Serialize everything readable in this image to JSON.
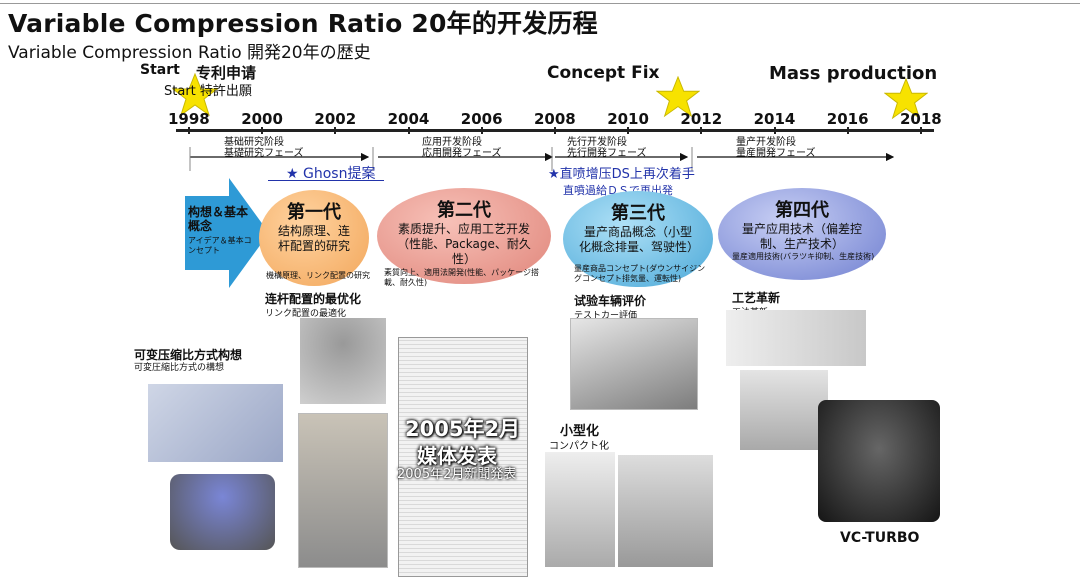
{
  "header": {
    "title": "Variable Compression Ratio 20年的开发历程",
    "subtitle": "Variable Compression Ratio 開発20年の歴史"
  },
  "milestones": {
    "start_label": "Start",
    "start_zh": "专利申请",
    "start_jp": "Start 特許出願",
    "concept_fix": "Concept Fix",
    "mass_production": "Mass production"
  },
  "timeline": {
    "years": [
      "1998",
      "2000",
      "2002",
      "2004",
      "2006",
      "2008",
      "2010",
      "2012",
      "2014",
      "2016",
      "2018"
    ]
  },
  "phases": [
    {
      "zh": "基础研究阶段",
      "jp": "基礎研究フェーズ"
    },
    {
      "zh": "应用开发阶段",
      "jp": "応用開発フェーズ"
    },
    {
      "zh": "先行开发阶段",
      "jp": "先行開発フェーズ"
    },
    {
      "zh": "量产开发阶段",
      "jp": "量産開発フェーズ"
    }
  ],
  "notes": {
    "ghosn": "★ Ghosn提案",
    "restart_zh": "★直喷增压DS上再次着手",
    "restart_jp": "直噴過給ＤＳで再出発"
  },
  "concept_arrow": {
    "zh": "构想＆基本概念",
    "jp": "アイデア＆基本コンセプト"
  },
  "generations": [
    {
      "title": "第一代",
      "body": "结构原理、连杆配置的研究",
      "jp": "機構原理、リンク配置の研究"
    },
    {
      "title": "第二代",
      "body": "素质提升、应用工艺开发（性能、Package、耐久性）",
      "jp": "素質向上、適用法開発(性能、パッケージ搭載、耐久性)"
    },
    {
      "title": "第三代",
      "body": "量产商品概念（小型化概念排量、驾驶性）",
      "jp": "量産商品コンセプト(ダウンサイジングコンセプト排気量、運転性)"
    },
    {
      "title": "第四代",
      "body": "量产应用技术（偏差控制、生产技术）",
      "jp": "量産適用技術(バラツキ抑制、生産技術)"
    }
  ],
  "captions": {
    "vcr_concept_zh": "可变压缩比方式构想",
    "vcr_concept_jp": "可変圧縮比方式の構想",
    "link_opt_zh": "连杆配置的最优化",
    "link_opt_jp": "リンク配置の最適化",
    "test_car_zh": "试验车辆评价",
    "test_car_jp": "テストカー評価",
    "process_zh": "工艺革新",
    "process_jp": "工法革新",
    "compact_zh": "小型化",
    "compact_jp": "コンパクト化",
    "media_zh_1": "2005年2月",
    "media_zh_2": "媒体发表",
    "media_jp": "2005年2月新聞発表",
    "vc_turbo": "VC-TURBO"
  },
  "colors": {
    "gen1": "#f2a65a",
    "gen2": "#e0857a",
    "gen3": "#4aa8d8",
    "gen4": "#6f7fd0",
    "arrow": "#2e9ad6",
    "star": "#f7e200",
    "note_blue": "#2233aa"
  }
}
